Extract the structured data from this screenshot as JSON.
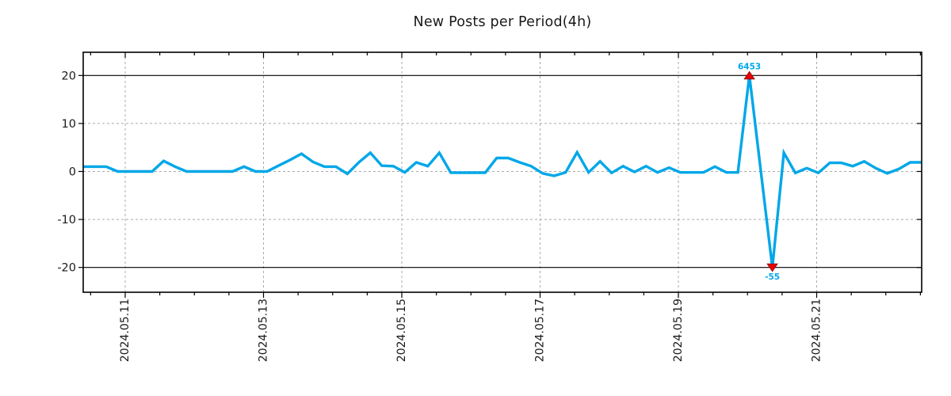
{
  "chart_data": {
    "type": "line",
    "title": "New Posts per Period(4h)",
    "period_label": "4h",
    "points_per_day": 6,
    "x_tick_labels": [
      "2024.05.11",
      "2024.05.13",
      "2024.05.15",
      "2024.05.17",
      "2024.05.19",
      "2024.05.21"
    ],
    "y_tick_labels": [
      "20",
      "10",
      "0",
      "-10",
      "-20"
    ],
    "y_tick_values": [
      20,
      10,
      0,
      -10,
      -20
    ],
    "ylim": [
      -25,
      25
    ],
    "threshold_lines": [
      20,
      -20
    ],
    "grid": {
      "style": "dashed",
      "horizontal_at": [
        10,
        0,
        -10
      ],
      "vertical_at_major_ticks": true
    },
    "legend": "none",
    "series": [
      {
        "name": "new-posts-per-4h",
        "values_plotted": [
          1,
          1,
          1,
          0,
          0,
          0,
          0,
          2.2,
          1,
          0,
          0,
          0,
          0,
          0,
          1,
          0,
          0,
          1.2,
          2.4,
          3.7,
          2,
          1,
          1,
          -0.5,
          1.9,
          3.9,
          1.2,
          1.1,
          -0.2,
          1.9,
          1.1,
          3.9,
          -0.25,
          -0.25,
          -0.25,
          -0.25,
          2.8,
          2.8,
          1.9,
          1.1,
          -0.4,
          -0.9,
          -0.2,
          4,
          -0.2,
          2.1,
          -0.3,
          1.1,
          -0.1,
          1.1,
          -0.2,
          0.8,
          -0.2,
          -0.2,
          -0.2,
          1,
          -0.2,
          -0.2,
          20,
          0,
          -20,
          3.9,
          -0.3,
          0.7,
          -0.3,
          1.8,
          1.8,
          1.1,
          2.1,
          0.7,
          -0.4,
          0.5,
          1.9,
          1.9
        ]
      }
    ],
    "annotations": [
      {
        "id": "max",
        "label": "6453",
        "true_value": 6453,
        "plotted_value": 20,
        "point_index": 58,
        "marker": "triangle-up"
      },
      {
        "id": "min",
        "label": "-55",
        "true_value": -55,
        "plotted_value": -20,
        "point_index": 60,
        "marker": "triangle-down"
      }
    ]
  },
  "colors": {
    "line": "#00A7E8",
    "annotation_text": "#00A7E8",
    "marker_fill": "#EB0000",
    "marker_edge": "#8B0000",
    "grid": "#ABABAB",
    "threshold": "#000000",
    "spine": "#000000",
    "tick_text": "#1A1A1A",
    "background": "#FFFFFF"
  }
}
